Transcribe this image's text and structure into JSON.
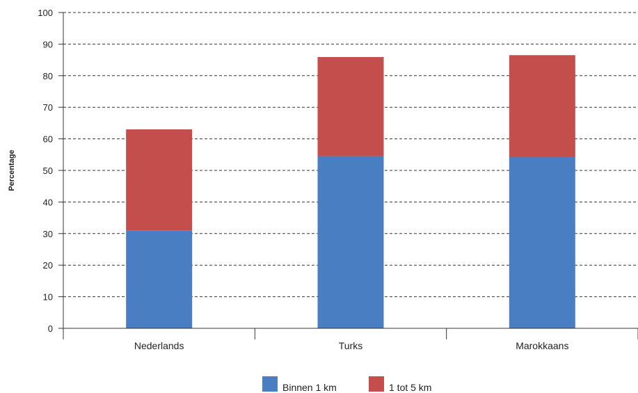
{
  "chart_data": {
    "type": "bar",
    "stacked": true,
    "categories": [
      "Nederlands",
      "Turks",
      "Marokkaans"
    ],
    "series": [
      {
        "name": "Binnen 1 km",
        "values": [
          31,
          54.5,
          54.3
        ],
        "color": "#4a7ec2"
      },
      {
        "name": "1 tot 5 km",
        "values": [
          32,
          31.4,
          32.2
        ],
        "color": "#c34e4b"
      }
    ],
    "ylabel": "Percentage",
    "ylim": [
      0,
      100
    ],
    "yticks": [
      0,
      10,
      20,
      30,
      40,
      50,
      60,
      70,
      80,
      90,
      100
    ],
    "grid": "dashed-horizontal",
    "legend": "bottom-center"
  }
}
